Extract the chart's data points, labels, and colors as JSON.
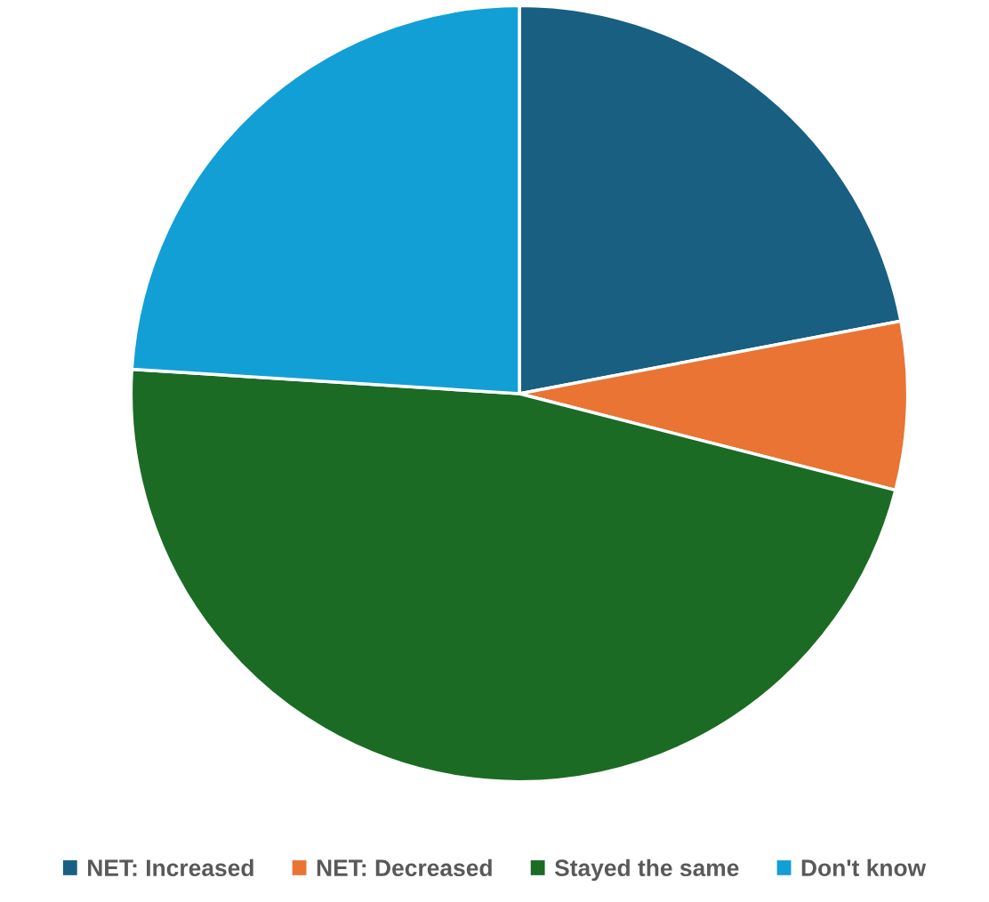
{
  "chart_data": {
    "type": "pie",
    "categories": [
      "NET: Increased",
      "NET: Decreased",
      "Stayed the same",
      "Don't know"
    ],
    "values": [
      22,
      7,
      47,
      24
    ],
    "colors": [
      "#185f82",
      "#e97434",
      "#1b6b25",
      "#129fd6"
    ],
    "legend": "bottom"
  }
}
